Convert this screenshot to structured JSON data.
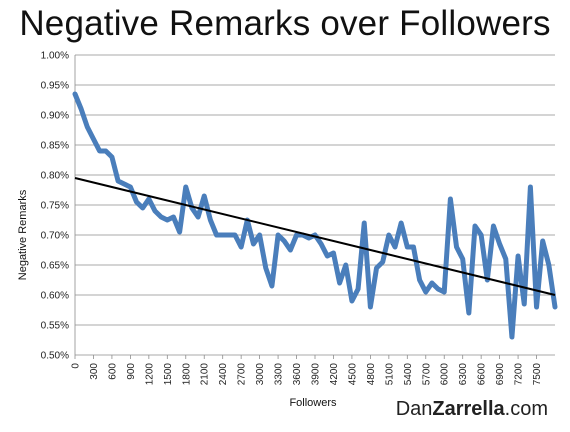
{
  "chart_data": {
    "type": "line",
    "title": "Negative Remarks over Followers",
    "xlabel": "Followers",
    "ylabel": "Negative Remarks",
    "ylim": [
      0.5,
      1.0
    ],
    "y_ticks": [
      "0.50%",
      "0.55%",
      "0.60%",
      "0.65%",
      "0.70%",
      "0.75%",
      "0.80%",
      "0.85%",
      "0.90%",
      "0.95%",
      "1.00%"
    ],
    "x_ticks": [
      "0",
      "300",
      "600",
      "900",
      "1200",
      "1500",
      "1800",
      "2100",
      "2400",
      "2700",
      "3000",
      "3300",
      "3600",
      "3900",
      "4200",
      "4500",
      "4800",
      "5100",
      "5400",
      "5700",
      "6000",
      "6300",
      "6600",
      "6900",
      "7200",
      "7500"
    ],
    "x_step": 100,
    "grid": "horizontal",
    "series": [
      {
        "color": "#4a7ebb",
        "values": [
          0.935,
          0.91,
          0.88,
          0.86,
          0.84,
          0.84,
          0.83,
          0.79,
          0.785,
          0.78,
          0.755,
          0.745,
          0.76,
          0.74,
          0.73,
          0.725,
          0.73,
          0.705,
          0.78,
          0.745,
          0.73,
          0.765,
          0.725,
          0.7,
          0.7,
          0.7,
          0.7,
          0.68,
          0.725,
          0.685,
          0.7,
          0.645,
          0.615,
          0.7,
          0.69,
          0.675,
          0.7,
          0.7,
          0.695,
          0.7,
          0.685,
          0.665,
          0.67,
          0.62,
          0.65,
          0.59,
          0.61,
          0.72,
          0.58,
          0.645,
          0.655,
          0.7,
          0.68,
          0.72,
          0.68,
          0.68,
          0.625,
          0.605,
          0.62,
          0.61,
          0.605,
          0.76,
          0.68,
          0.66,
          0.57,
          0.715,
          0.7,
          0.625,
          0.715,
          0.685,
          0.66,
          0.53,
          0.665,
          0.585,
          0.78,
          0.58,
          0.69,
          0.65,
          0.58
        ]
      },
      {
        "color": "#000000",
        "values": [
          0.795,
          0.6
        ],
        "x_range": [
          0,
          7800
        ]
      }
    ]
  },
  "brand": {
    "part1": "Dan",
    "part2": "Zarrella",
    "part3": ".com"
  }
}
